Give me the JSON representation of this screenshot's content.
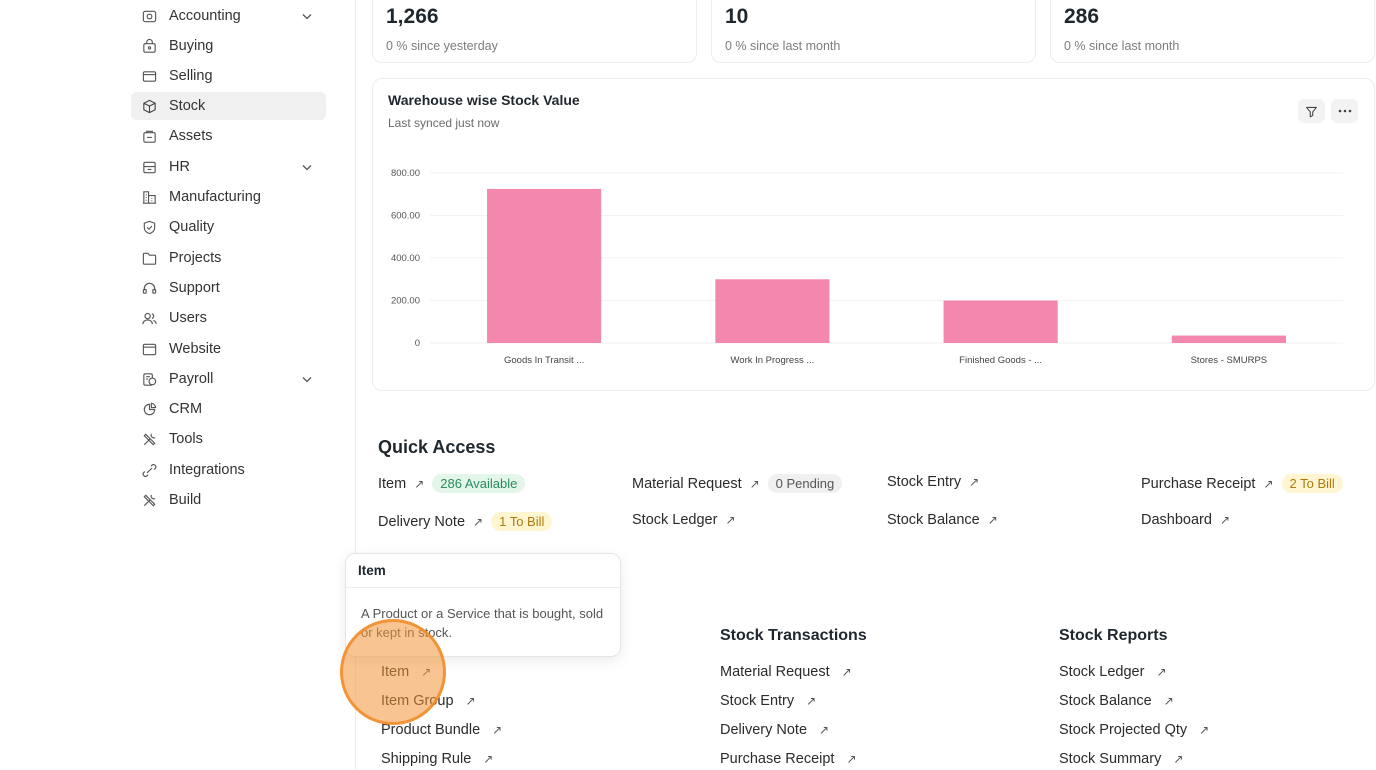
{
  "sidebar": {
    "items": [
      {
        "label": "Accounting",
        "icon": "accounting-icon",
        "has_chevron": true
      },
      {
        "label": "Buying",
        "icon": "buying-icon"
      },
      {
        "label": "Selling",
        "icon": "selling-icon"
      },
      {
        "label": "Stock",
        "icon": "stock-icon",
        "active": true
      },
      {
        "label": "Assets",
        "icon": "assets-icon"
      },
      {
        "label": "HR",
        "icon": "hr-icon",
        "has_chevron": true
      },
      {
        "label": "Manufacturing",
        "icon": "manufacturing-icon"
      },
      {
        "label": "Quality",
        "icon": "quality-icon"
      },
      {
        "label": "Projects",
        "icon": "projects-icon"
      },
      {
        "label": "Support",
        "icon": "support-icon"
      },
      {
        "label": "Users",
        "icon": "users-icon"
      },
      {
        "label": "Website",
        "icon": "website-icon"
      },
      {
        "label": "Payroll",
        "icon": "payroll-icon",
        "has_chevron": true
      },
      {
        "label": "CRM",
        "icon": "crm-icon"
      },
      {
        "label": "Tools",
        "icon": "tools-icon"
      },
      {
        "label": "Integrations",
        "icon": "integrations-icon"
      },
      {
        "label": "Build",
        "icon": "build-icon"
      }
    ]
  },
  "stats": [
    {
      "value": "1,266",
      "sub": "0 % since yesterday"
    },
    {
      "value": "10",
      "sub": "0 % since last month"
    },
    {
      "value": "286",
      "sub": "0 % since last month"
    }
  ],
  "chart_card": {
    "title": "Warehouse wise Stock Value",
    "subtitle": "Last synced just now",
    "filter_icon": "filter-icon",
    "menu_icon": "more-icon"
  },
  "chart_data": {
    "type": "bar",
    "title": "Warehouse wise Stock Value",
    "categories": [
      "Goods In Transit ...",
      "Work In Progress ...",
      "Finished Goods - ...",
      "Stores - SMURPS"
    ],
    "values": [
      725,
      300,
      200,
      35
    ],
    "yticks": [
      "0",
      "200.00",
      "400.00",
      "600.00",
      "800.00"
    ],
    "ylim": [
      0,
      800
    ],
    "color": "#f487ad"
  },
  "quick_access": {
    "title": "Quick Access",
    "links": [
      {
        "label": "Item",
        "badge": "286 Available",
        "badge_style": "green"
      },
      {
        "label": "Material Request",
        "badge": "0 Pending",
        "badge_style": "gray"
      },
      {
        "label": "Stock Entry"
      },
      {
        "label": "Purchase Receipt",
        "badge": "2 To Bill",
        "badge_style": "yellow"
      },
      {
        "label": "Delivery Note",
        "badge": "1 To Bill",
        "badge_style": "yellow"
      },
      {
        "label": "Stock Ledger"
      },
      {
        "label": "Stock Balance"
      },
      {
        "label": "Dashboard"
      }
    ]
  },
  "sections": {
    "stock_transactions": {
      "title": "Stock Transactions",
      "links": [
        "Material Request",
        "Stock Entry",
        "Delivery Note",
        "Purchase Receipt"
      ]
    },
    "stock_reports": {
      "title": "Stock Reports",
      "links": [
        "Stock Ledger",
        "Stock Balance",
        "Stock Projected Qty",
        "Stock Summary"
      ]
    },
    "items_catalogue": {
      "links": [
        "Item",
        "Item Group",
        "Product Bundle",
        "Shipping Rule"
      ]
    }
  },
  "tooltip": {
    "title": "Item",
    "body": "A Product or a Service that is bought, sold or kept in stock."
  },
  "arrow_glyph": "↗"
}
